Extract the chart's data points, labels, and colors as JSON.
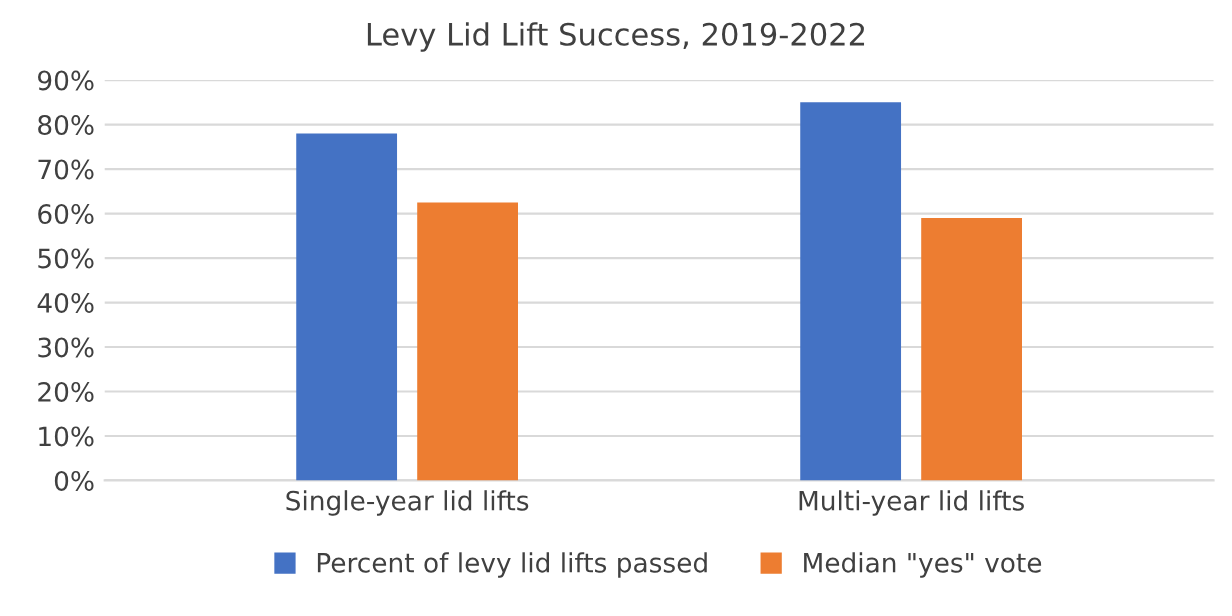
{
  "chart_data": {
    "type": "bar",
    "title": "Levy Lid Lift Success, 2019-2022",
    "categories": [
      "Single-year lid lifts",
      "Multi-year lid lifts"
    ],
    "series": [
      {
        "name": "Percent of levy lid lifts passed",
        "color": "#4472c4",
        "values": [
          78,
          85
        ]
      },
      {
        "name": "Median \"yes\" vote",
        "color": "#ed7d31",
        "values": [
          62.5,
          59
        ]
      }
    ],
    "ylim": [
      0,
      90
    ],
    "yticks": [
      {
        "value": 0,
        "label": "0%"
      },
      {
        "value": 10,
        "label": "10%"
      },
      {
        "value": 20,
        "label": "20%"
      },
      {
        "value": 30,
        "label": "30%"
      },
      {
        "value": 40,
        "label": "40%"
      },
      {
        "value": 50,
        "label": "50%"
      },
      {
        "value": 60,
        "label": "60%"
      },
      {
        "value": 70,
        "label": "70%"
      },
      {
        "value": 80,
        "label": "80%"
      },
      {
        "value": 90,
        "label": "90%"
      }
    ],
    "grid": "y",
    "legend": "bottom"
  }
}
